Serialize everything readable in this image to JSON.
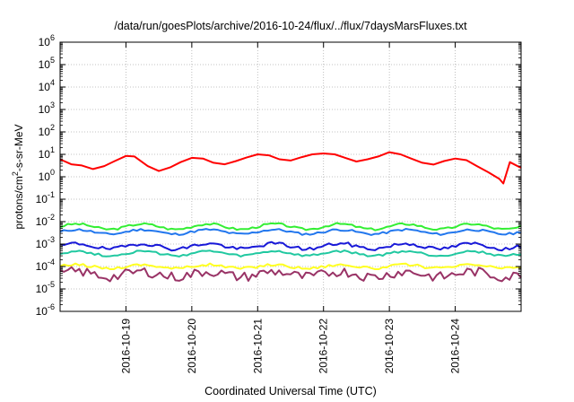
{
  "chart_data": {
    "type": "line",
    "title": "/data/run/goesPlots/archive/2016-10-24/flux/../flux/7daysMarsFluxes.txt",
    "xlabel": "Coordinated Universal Time (UTC)",
    "ylabel": {
      "prefix": "protons/cm",
      "sup": "2",
      "suffix": "-s-sr-MeV"
    },
    "y_scale": "log",
    "ylim_exp": [
      -6,
      6
    ],
    "y_ticks": [
      {
        "base": "10",
        "exp": "-6"
      },
      {
        "base": "10",
        "exp": "-5"
      },
      {
        "base": "10",
        "exp": "-4"
      },
      {
        "base": "10",
        "exp": "-3"
      },
      {
        "base": "10",
        "exp": "-2"
      },
      {
        "base": "10",
        "exp": "-1"
      },
      {
        "base": "10",
        "exp": "0"
      },
      {
        "base": "10",
        "exp": "1"
      },
      {
        "base": "10",
        "exp": "2"
      },
      {
        "base": "10",
        "exp": "3"
      },
      {
        "base": "10",
        "exp": "4"
      },
      {
        "base": "10",
        "exp": "5"
      },
      {
        "base": "10",
        "exp": "6"
      }
    ],
    "x_range_days": [
      "2016-10-18",
      "2016-10-25"
    ],
    "xlim": [
      0.0,
      7.0
    ],
    "x_ticks": [
      {
        "label": "2016-10-19",
        "x": 1.0
      },
      {
        "label": "2016-10-20",
        "x": 2.0
      },
      {
        "label": "2016-10-21",
        "x": 3.0
      },
      {
        "label": "2016-10-22",
        "x": 4.0
      },
      {
        "label": "2016-10-23",
        "x": 5.0
      },
      {
        "label": "2016-10-24",
        "x": 6.0
      }
    ],
    "grid": true,
    "legend": "none",
    "series": [
      {
        "color": "#ff0000",
        "x": [
          0.0,
          0.17,
          0.33,
          0.5,
          0.67,
          0.83,
          1.0,
          1.13,
          1.33,
          1.5,
          1.67,
          1.83,
          2.0,
          2.17,
          2.33,
          2.5,
          2.67,
          2.83,
          3.0,
          3.17,
          3.33,
          3.5,
          3.67,
          3.83,
          4.0,
          4.17,
          4.33,
          4.5,
          4.67,
          4.83,
          5.0,
          5.17,
          5.33,
          5.5,
          5.67,
          5.83,
          6.0,
          6.17,
          6.33,
          6.5,
          6.67,
          6.73,
          6.83,
          7.0
        ],
        "y": [
          6.0,
          3.6,
          3.2,
          2.2,
          3.0,
          5.0,
          8.5,
          8.0,
          3.0,
          1.8,
          2.6,
          4.5,
          7.0,
          6.5,
          4.2,
          3.6,
          5.0,
          7.2,
          10.0,
          9.0,
          6.0,
          5.3,
          7.5,
          10.0,
          11.0,
          10.0,
          7.0,
          4.8,
          6.0,
          8.0,
          12.5,
          10.0,
          6.5,
          4.2,
          3.5,
          5.0,
          6.5,
          5.5,
          3.0,
          1.6,
          0.8,
          0.5,
          4.5,
          2.5
        ]
      },
      {
        "color": "#33ee33",
        "base": 0.006,
        "amp": 0.12,
        "jitter": 0.05,
        "seed": 3
      },
      {
        "color": "#2277ee",
        "base": 0.0035,
        "amp": 0.1,
        "jitter": 0.05,
        "seed": 11
      },
      {
        "color": "#1818d8",
        "base": 0.0008,
        "amp": 0.12,
        "jitter": 0.08,
        "seed": 19
      },
      {
        "color": "#20c8a0",
        "base": 0.00038,
        "amp": 0.1,
        "jitter": 0.05,
        "seed": 27
      },
      {
        "color": "#ffff22",
        "base": 0.0001,
        "amp": 0.08,
        "jitter": 0.06,
        "seed": 35
      },
      {
        "color": "#993366",
        "base": 4.5e-05,
        "amp": 0.12,
        "jitter": 0.22,
        "seed": 43
      }
    ]
  }
}
